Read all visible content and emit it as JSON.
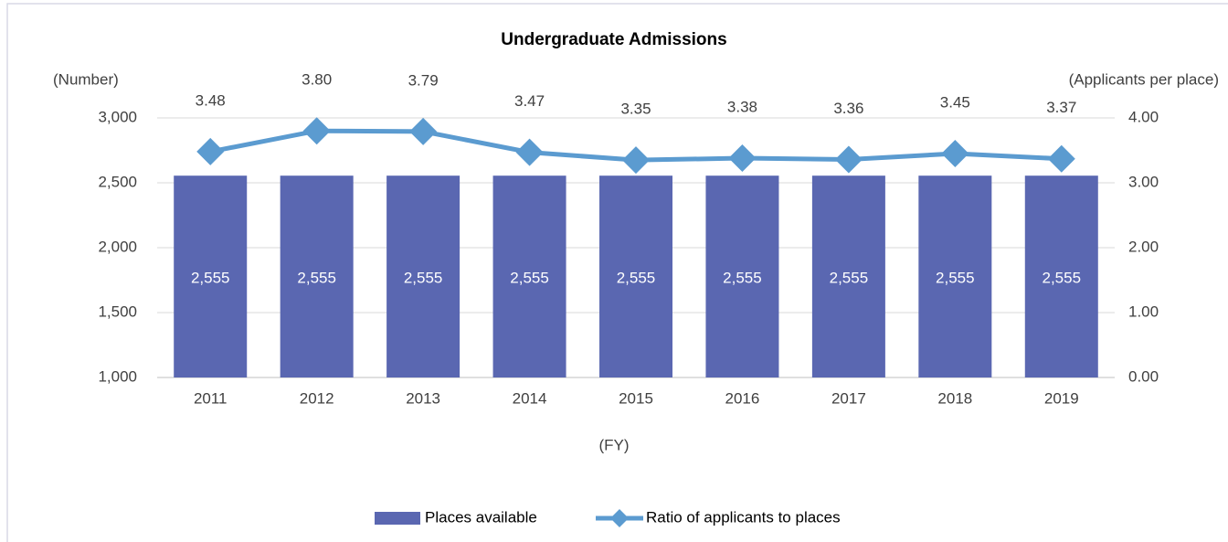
{
  "chart_data": {
    "type": "bar_line",
    "title": "Undergraduate Admissions",
    "y_label": "(Number)",
    "y2_label": "(Applicants per place)",
    "x_label": "(FY)",
    "categories": [
      "2011",
      "2012",
      "2013",
      "2014",
      "2015",
      "2016",
      "2017",
      "2018",
      "2019"
    ],
    "series": [
      {
        "name": "Places available",
        "type": "bar",
        "color": "#5a67b1",
        "values": [
          2555,
          2555,
          2555,
          2555,
          2555,
          2555,
          2555,
          2555,
          2555
        ],
        "value_labels": [
          "2,555",
          "2,555",
          "2,555",
          "2,555",
          "2,555",
          "2,555",
          "2,555",
          "2,555",
          "2,555"
        ]
      },
      {
        "name": "Ratio of applicants to places",
        "type": "line",
        "axis": "y2",
        "color": "#5b9bd0",
        "values": [
          3.48,
          3.8,
          3.79,
          3.47,
          3.35,
          3.38,
          3.36,
          3.45,
          3.37
        ],
        "value_labels": [
          "3.48",
          "3.80",
          "3.79",
          "3.47",
          "3.35",
          "3.38",
          "3.36",
          "3.45",
          "3.37"
        ]
      }
    ],
    "ylim": [
      1000,
      3000
    ],
    "yticks": [
      {
        "value": 1000,
        "label": "1,000"
      },
      {
        "value": 1500,
        "label": "1,500"
      },
      {
        "value": 2000,
        "label": "2,000"
      },
      {
        "value": 2500,
        "label": "2,500"
      },
      {
        "value": 3000,
        "label": "3,000"
      }
    ],
    "y2lim": [
      0,
      4
    ],
    "y2ticks": [
      {
        "value": 0,
        "label": "0.00"
      },
      {
        "value": 1,
        "label": "1.00"
      },
      {
        "value": 2,
        "label": "2.00"
      },
      {
        "value": 3,
        "label": "3.00"
      },
      {
        "value": 4,
        "label": "4.00"
      }
    ],
    "grid": true,
    "legend": "bottom"
  }
}
